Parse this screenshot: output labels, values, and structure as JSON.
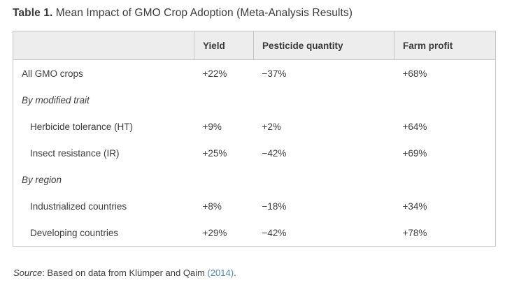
{
  "title": {
    "label": "Table 1.",
    "text": " Mean Impact of GMO Crop Adoption (Meta-Analysis Results)"
  },
  "chart_data": {
    "type": "table",
    "title": "Table 1. Mean Impact of GMO Crop Adoption (Meta-Analysis Results)",
    "columns": [
      "",
      "Yield",
      "Pesticide quantity",
      "Farm profit"
    ],
    "rows": [
      {
        "label": "All GMO crops",
        "type": "data",
        "indent": false,
        "values": [
          "+22%",
          "−37%",
          "+68%"
        ]
      },
      {
        "label": "By modified trait",
        "type": "section",
        "indent": false,
        "values": [
          "",
          "",
          ""
        ]
      },
      {
        "label": "Herbicide tolerance (HT)",
        "type": "data",
        "indent": true,
        "values": [
          "+9%",
          "+2%",
          "+64%"
        ]
      },
      {
        "label": "Insect resistance (IR)",
        "type": "data",
        "indent": true,
        "values": [
          "+25%",
          "−42%",
          "+69%"
        ]
      },
      {
        "label": "By region",
        "type": "section",
        "indent": false,
        "values": [
          "",
          "",
          ""
        ]
      },
      {
        "label": "Industrialized countries",
        "type": "data",
        "indent": true,
        "values": [
          "+8%",
          "−18%",
          "+34%"
        ]
      },
      {
        "label": "Developing countries",
        "type": "data",
        "indent": true,
        "values": [
          "+29%",
          "−42%",
          "+78%"
        ]
      }
    ]
  },
  "source": {
    "label": "Source",
    "text": ": Based on data from Klümper and Qaim ",
    "link": "(2014)",
    "suffix": "."
  },
  "colors": {
    "header_background": "#ededed",
    "table_border": "#c6c6c6",
    "text": "#3d3d3d",
    "link": "#4e86b8",
    "page_background": "#ffffff"
  }
}
